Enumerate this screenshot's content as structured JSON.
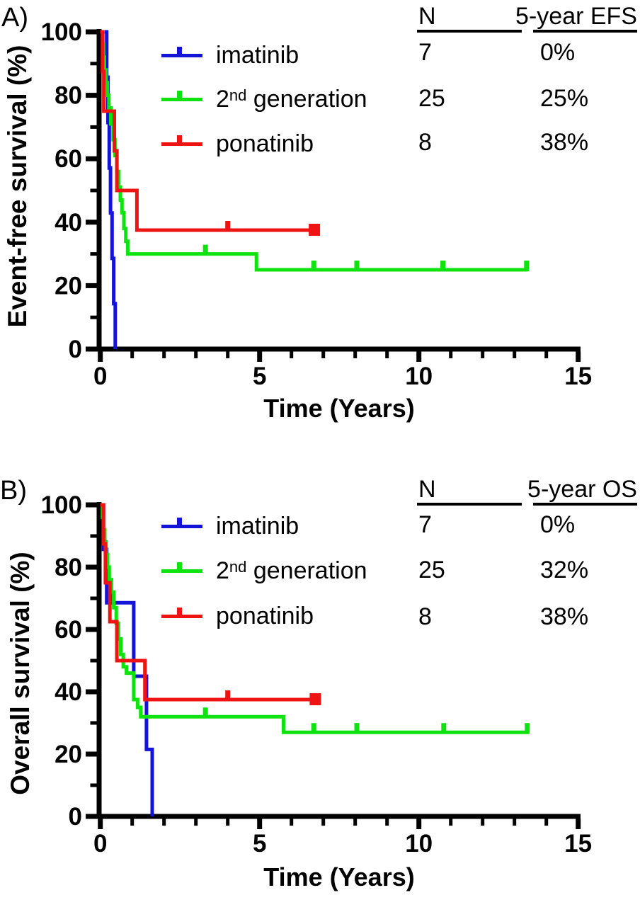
{
  "figure": {
    "panels": [
      {
        "letter": "A)",
        "y_title": "Event-free survival (%)",
        "x_title": "Time (Years)",
        "legend": [
          {
            "pre": "imatinib",
            "sup": "",
            "post": ""
          },
          {
            "pre": "2",
            "sup": "nd",
            "post": " generation"
          },
          {
            "pre": "ponatinib",
            "sup": "",
            "post": ""
          }
        ],
        "table": {
          "col1_header": "N",
          "col2_header": "5-year EFS",
          "rows": [
            {
              "n": "7",
              "pct": "0%"
            },
            {
              "n": "25",
              "pct": "25%"
            },
            {
              "n": "8",
              "pct": "38%"
            }
          ]
        }
      },
      {
        "letter": "B)",
        "y_title": "Overall survival (%)",
        "x_title": "Time (Years)",
        "legend": [
          {
            "pre": "imatinib",
            "sup": "",
            "post": ""
          },
          {
            "pre": "2",
            "sup": "nd",
            "post": " generation"
          },
          {
            "pre": "ponatinib",
            "sup": "",
            "post": ""
          }
        ],
        "table": {
          "col1_header": "N",
          "col2_header": "5-year OS",
          "rows": [
            {
              "n": "7",
              "pct": "0%"
            },
            {
              "n": "25",
              "pct": "32%"
            },
            {
              "n": "8",
              "pct": "38%"
            }
          ]
        }
      }
    ]
  },
  "chart_data": [
    {
      "type": "line",
      "subtype": "kaplan-meier-step",
      "panel": "A",
      "title": "",
      "xlabel": "Time (Years)",
      "ylabel": "Event-free survival (%)",
      "xlim": [
        0,
        15
      ],
      "ylim": [
        0,
        100
      ],
      "xticks": [
        0,
        5,
        10,
        15
      ],
      "xminor_step": 1,
      "yticks": [
        100,
        80,
        60,
        40,
        20,
        0
      ],
      "yminor_step": 10,
      "grid": false,
      "legend_position": "inside-top-left",
      "series": [
        {
          "name": "imatinib",
          "color": "#1414d8",
          "n": 7,
          "five_year": "0%",
          "start_value": 100,
          "steps": [
            [
              0.2,
              85.7
            ],
            [
              0.24,
              71.4
            ],
            [
              0.28,
              57.1
            ],
            [
              0.32,
              42.9
            ],
            [
              0.37,
              28.6
            ],
            [
              0.42,
              14.3
            ],
            [
              0.47,
              0
            ]
          ],
          "end_time": 0.47,
          "censor_times": [],
          "end_square": false
        },
        {
          "name": "2nd generation",
          "color": "#0fe30f",
          "n": 25,
          "five_year": "25%",
          "start_value": 100,
          "steps": [
            [
              0.08,
              96
            ],
            [
              0.1,
              92
            ],
            [
              0.13,
              88
            ],
            [
              0.18,
              84
            ],
            [
              0.22,
              80
            ],
            [
              0.27,
              76
            ],
            [
              0.33,
              71
            ],
            [
              0.4,
              66
            ],
            [
              0.46,
              61
            ],
            [
              0.52,
              56
            ],
            [
              0.58,
              51
            ],
            [
              0.63,
              47
            ],
            [
              0.68,
              43
            ],
            [
              0.74,
              38
            ],
            [
              0.8,
              34
            ],
            [
              0.86,
              30
            ],
            [
              4.9,
              25
            ]
          ],
          "end_time": 13.42,
          "censor_times": [
            3.3,
            6.7,
            8.05,
            10.75,
            13.38
          ],
          "end_square": false
        },
        {
          "name": "ponatinib",
          "color": "#ee1414",
          "n": 8,
          "five_year": "38%",
          "start_value": 100,
          "steps": [
            [
              0.07,
              87.5
            ],
            [
              0.11,
              75
            ],
            [
              0.44,
              62.5
            ],
            [
              0.52,
              50
            ],
            [
              1.15,
              37.5
            ]
          ],
          "end_time": 6.72,
          "censor_times": [
            4.0
          ],
          "end_square": true
        }
      ]
    },
    {
      "type": "line",
      "subtype": "kaplan-meier-step",
      "panel": "B",
      "title": "",
      "xlabel": "Time (Years)",
      "ylabel": "Overall survival (%)",
      "xlim": [
        0,
        15
      ],
      "ylim": [
        0,
        100
      ],
      "xticks": [
        0,
        5,
        10,
        15
      ],
      "xminor_step": 1,
      "yticks": [
        100,
        80,
        60,
        40,
        20,
        0
      ],
      "yminor_step": 10,
      "grid": false,
      "legend_position": "inside-top-left",
      "series": [
        {
          "name": "imatinib",
          "color": "#1414d8",
          "n": 7,
          "five_year": "0%",
          "start_value": 100,
          "steps": [
            [
              0.1,
              85.7
            ],
            [
              0.2,
              68.6
            ],
            [
              1.05,
              45
            ],
            [
              1.45,
              21.5
            ],
            [
              1.63,
              0
            ]
          ],
          "end_time": 1.63,
          "censor_times": [
            0.14,
            0.4
          ],
          "end_square": false
        },
        {
          "name": "2nd generation",
          "color": "#0fe30f",
          "n": 25,
          "five_year": "32%",
          "start_value": 100,
          "steps": [
            [
              0.07,
              96
            ],
            [
              0.1,
              92
            ],
            [
              0.14,
              88
            ],
            [
              0.18,
              84
            ],
            [
              0.23,
              80
            ],
            [
              0.28,
              76
            ],
            [
              0.35,
              72
            ],
            [
              0.42,
              67
            ],
            [
              0.5,
              62
            ],
            [
              0.57,
              57
            ],
            [
              0.64,
              52
            ],
            [
              0.72,
              48
            ],
            [
              0.82,
              46
            ],
            [
              1.05,
              37.5
            ],
            [
              1.17,
              35
            ],
            [
              1.27,
              32
            ],
            [
              5.75,
              27
            ]
          ],
          "end_time": 13.45,
          "censor_times": [
            3.3,
            6.7,
            8.05,
            10.78,
            13.4
          ],
          "end_square": false
        },
        {
          "name": "ponatinib",
          "color": "#ee1414",
          "n": 8,
          "five_year": "38%",
          "start_value": 100,
          "steps": [
            [
              0.1,
              87.5
            ],
            [
              0.16,
              75
            ],
            [
              0.3,
              62.5
            ],
            [
              0.52,
              50
            ],
            [
              1.4,
              37.5
            ]
          ],
          "end_time": 6.75,
          "censor_times": [
            4.0
          ],
          "end_square": true
        }
      ]
    }
  ]
}
